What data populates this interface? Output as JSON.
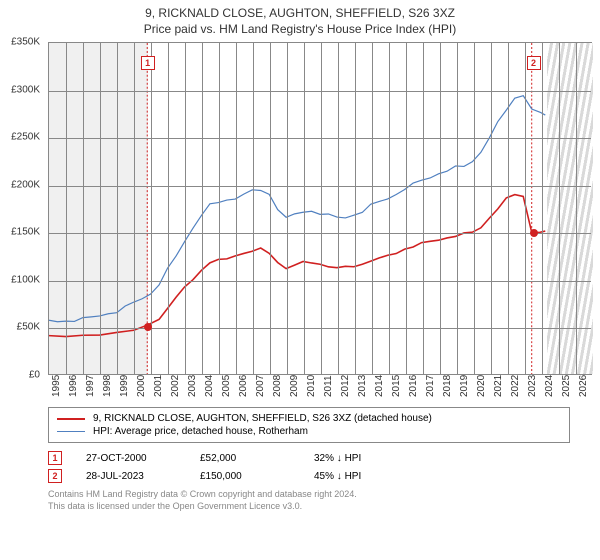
{
  "title_line1": "9, RICKNALD CLOSE, AUGHTON, SHEFFIELD, S26 3XZ",
  "title_line2": "Price paid vs. HM Land Registry's House Price Index (HPI)",
  "chart": {
    "type": "line",
    "background_color": "#ffffff",
    "grid_color": "#888888",
    "band_past_color": "#f0f0f0",
    "band_future_fill": "#d9d9d9",
    "x_min": 1995,
    "x_max": 2027,
    "y_min": 0,
    "y_max": 350000,
    "y_ticks": [
      0,
      50000,
      100000,
      150000,
      200000,
      250000,
      300000,
      350000
    ],
    "y_tick_labels": [
      "£0",
      "£50K",
      "£100K",
      "£150K",
      "£200K",
      "£250K",
      "£300K",
      "£350K"
    ],
    "x_ticks": [
      1995,
      1996,
      1997,
      1998,
      1999,
      2000,
      2001,
      2002,
      2003,
      2004,
      2005,
      2006,
      2007,
      2008,
      2009,
      2010,
      2011,
      2012,
      2013,
      2014,
      2015,
      2016,
      2017,
      2018,
      2019,
      2020,
      2021,
      2022,
      2023,
      2024,
      2025,
      2026
    ],
    "past_band_start": 1995,
    "past_band_end": 2000.8,
    "future_band_start": 2024.3,
    "future_band_end": 2027,
    "series": {
      "property": {
        "name": "9, RICKNALD CLOSE, AUGHTON, SHEFFIELD, S26 3XZ (detached house)",
        "color": "#d02020",
        "line_width": 1.6,
        "data": [
          [
            1995,
            40000
          ],
          [
            1996,
            40000
          ],
          [
            1997,
            41000
          ],
          [
            1998,
            42000
          ],
          [
            1999,
            43000
          ],
          [
            2000,
            46000
          ],
          [
            2000.8,
            52000
          ],
          [
            2001.5,
            58000
          ],
          [
            2002,
            70000
          ],
          [
            2002.5,
            80000
          ],
          [
            2003,
            92000
          ],
          [
            2003.5,
            100000
          ],
          [
            2004,
            110000
          ],
          [
            2004.5,
            118000
          ],
          [
            2005,
            120000
          ],
          [
            2005.5,
            122000
          ],
          [
            2006,
            125000
          ],
          [
            2006.5,
            128000
          ],
          [
            2007,
            130000
          ],
          [
            2007.5,
            132000
          ],
          [
            2008,
            128000
          ],
          [
            2008.5,
            118000
          ],
          [
            2009,
            112000
          ],
          [
            2009.5,
            115000
          ],
          [
            2010,
            118000
          ],
          [
            2010.5,
            118000
          ],
          [
            2011,
            116000
          ],
          [
            2011.5,
            114000
          ],
          [
            2012,
            112000
          ],
          [
            2012.5,
            113000
          ],
          [
            2013,
            114000
          ],
          [
            2013.5,
            116000
          ],
          [
            2014,
            120000
          ],
          [
            2014.5,
            122000
          ],
          [
            2015,
            125000
          ],
          [
            2015.5,
            128000
          ],
          [
            2016,
            132000
          ],
          [
            2016.5,
            135000
          ],
          [
            2017,
            138000
          ],
          [
            2017.5,
            140000
          ],
          [
            2018,
            142000
          ],
          [
            2018.5,
            144000
          ],
          [
            2019,
            146000
          ],
          [
            2019.5,
            148000
          ],
          [
            2020,
            150000
          ],
          [
            2020.5,
            155000
          ],
          [
            2021,
            165000
          ],
          [
            2021.5,
            175000
          ],
          [
            2022,
            185000
          ],
          [
            2022.5,
            190000
          ],
          [
            2023,
            188000
          ],
          [
            2023.5,
            150000
          ],
          [
            2024,
            150000
          ],
          [
            2024.3,
            150000
          ]
        ]
      },
      "hpi": {
        "name": "HPI: Average price, detached house, Rotherham",
        "color": "#5080c0",
        "line_width": 1.2,
        "data": [
          [
            1995,
            56000
          ],
          [
            1995.5,
            56000
          ],
          [
            1996,
            56000
          ],
          [
            1996.5,
            57000
          ],
          [
            1997,
            58000
          ],
          [
            1997.5,
            60000
          ],
          [
            1998,
            62000
          ],
          [
            1998.5,
            64000
          ],
          [
            1999,
            66000
          ],
          [
            1999.5,
            70000
          ],
          [
            2000,
            76000
          ],
          [
            2000.5,
            80000
          ],
          [
            2001,
            85000
          ],
          [
            2001.5,
            95000
          ],
          [
            2002,
            110000
          ],
          [
            2002.5,
            125000
          ],
          [
            2003,
            140000
          ],
          [
            2003.5,
            155000
          ],
          [
            2004,
            168000
          ],
          [
            2004.5,
            178000
          ],
          [
            2005,
            182000
          ],
          [
            2005.5,
            184000
          ],
          [
            2006,
            186000
          ],
          [
            2006.5,
            190000
          ],
          [
            2007,
            193000
          ],
          [
            2007.5,
            195000
          ],
          [
            2008,
            190000
          ],
          [
            2008.5,
            175000
          ],
          [
            2009,
            165000
          ],
          [
            2009.5,
            168000
          ],
          [
            2010,
            172000
          ],
          [
            2010.5,
            172000
          ],
          [
            2011,
            170000
          ],
          [
            2011.5,
            168000
          ],
          [
            2012,
            165000
          ],
          [
            2012.5,
            166000
          ],
          [
            2013,
            168000
          ],
          [
            2013.5,
            172000
          ],
          [
            2014,
            178000
          ],
          [
            2014.5,
            182000
          ],
          [
            2015,
            186000
          ],
          [
            2015.5,
            190000
          ],
          [
            2016,
            196000
          ],
          [
            2016.5,
            200000
          ],
          [
            2017,
            205000
          ],
          [
            2017.5,
            208000
          ],
          [
            2018,
            212000
          ],
          [
            2018.5,
            215000
          ],
          [
            2019,
            218000
          ],
          [
            2019.5,
            220000
          ],
          [
            2020,
            225000
          ],
          [
            2020.5,
            235000
          ],
          [
            2021,
            250000
          ],
          [
            2021.5,
            265000
          ],
          [
            2022,
            280000
          ],
          [
            2022.5,
            292000
          ],
          [
            2023,
            295000
          ],
          [
            2023.5,
            280000
          ],
          [
            2024,
            275000
          ],
          [
            2024.3,
            275000
          ]
        ]
      }
    },
    "sale_markers": [
      {
        "label": "1",
        "x": 2000.8,
        "y": 52000,
        "marker_top": 0.06
      },
      {
        "label": "2",
        "x": 2023.5,
        "y": 150000,
        "marker_top": 0.06
      }
    ]
  },
  "legend": {
    "items": [
      {
        "color": "#d02020",
        "width": 2,
        "label": "9, RICKNALD CLOSE, AUGHTON, SHEFFIELD, S26 3XZ (detached house)"
      },
      {
        "color": "#5080c0",
        "width": 1.5,
        "label": "HPI: Average price, detached house, Rotherham"
      }
    ]
  },
  "marker_table": [
    {
      "num": "1",
      "date": "27-OCT-2000",
      "price": "£52,000",
      "pct": "32% ↓ HPI"
    },
    {
      "num": "2",
      "date": "28-JUL-2023",
      "price": "£150,000",
      "pct": "45% ↓ HPI"
    }
  ],
  "footer_line1": "Contains HM Land Registry data © Crown copyright and database right 2024.",
  "footer_line2": "This data is licensed under the Open Government Licence v3.0."
}
